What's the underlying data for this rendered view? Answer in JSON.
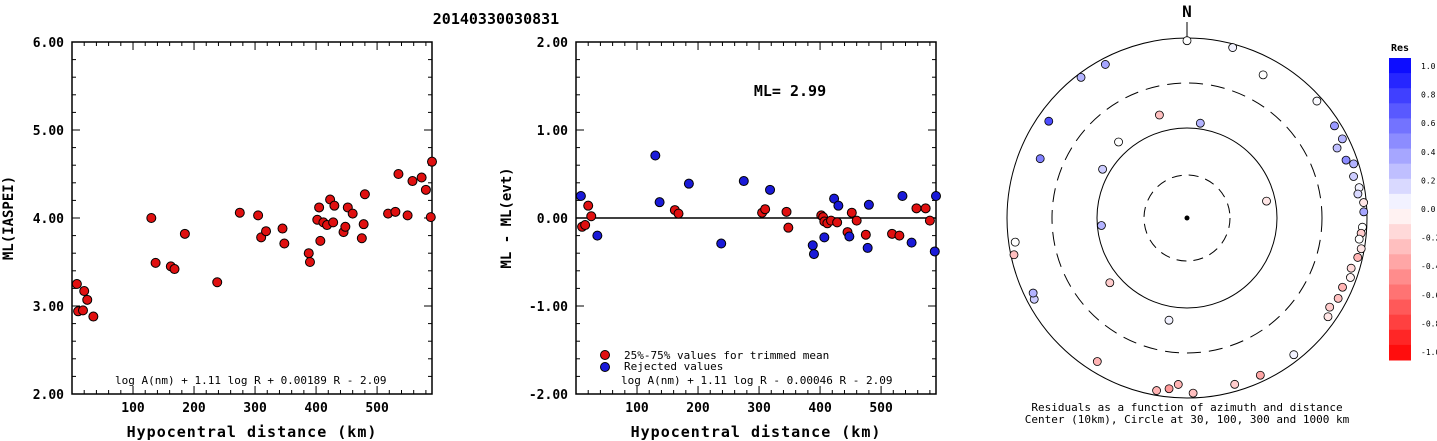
{
  "title": "20140330030831",
  "chart_data": [
    {
      "type": "scatter",
      "xlabel": "Hypocentral distance (km)",
      "ylabel": "ML(IASPEI)",
      "xlim": [
        0,
        590
      ],
      "ylim": [
        2.0,
        6.0
      ],
      "xticks": [
        "100",
        "200",
        "300",
        "400",
        "500"
      ],
      "yticks": [
        "2.00",
        "3.00",
        "4.00",
        "5.00",
        "6.00"
      ],
      "formula": "log A(nm) + 1.11 log R + 0.00189 R - 2.09",
      "grid": false,
      "series": [
        {
          "color": "#e01010",
          "points": [
            [
              8,
              3.25
            ],
            [
              10,
              2.94
            ],
            [
              18,
              2.95
            ],
            [
              20,
              3.17
            ],
            [
              25,
              3.07
            ],
            [
              35,
              2.88
            ],
            [
              130,
              4.0
            ],
            [
              137,
              3.49
            ],
            [
              162,
              3.45
            ],
            [
              168,
              3.42
            ],
            [
              185,
              3.82
            ],
            [
              238,
              3.27
            ],
            [
              275,
              4.06
            ],
            [
              305,
              4.03
            ],
            [
              310,
              3.78
            ],
            [
              318,
              3.85
            ],
            [
              345,
              3.88
            ],
            [
              348,
              3.71
            ],
            [
              388,
              3.6
            ],
            [
              390,
              3.5
            ],
            [
              402,
              3.98
            ],
            [
              405,
              4.12
            ],
            [
              407,
              3.74
            ],
            [
              412,
              3.95
            ],
            [
              418,
              3.92
            ],
            [
              423,
              4.21
            ],
            [
              428,
              3.95
            ],
            [
              430,
              4.14
            ],
            [
              445,
              3.84
            ],
            [
              448,
              3.9
            ],
            [
              452,
              4.12
            ],
            [
              460,
              4.05
            ],
            [
              475,
              3.77
            ],
            [
              478,
              3.93
            ],
            [
              480,
              4.27
            ],
            [
              518,
              4.05
            ],
            [
              530,
              4.07
            ],
            [
              535,
              4.5
            ],
            [
              550,
              4.03
            ],
            [
              558,
              4.42
            ],
            [
              573,
              4.46
            ],
            [
              580,
              4.32
            ],
            [
              588,
              4.01
            ],
            [
              593,
              4.64
            ]
          ]
        }
      ]
    },
    {
      "type": "scatter",
      "xlabel": "Hypocentral distance (km)",
      "ylabel": "ML - ML(evt)",
      "xlim": [
        0,
        590
      ],
      "ylim": [
        -2.0,
        2.0
      ],
      "xticks": [
        "100",
        "200",
        "300",
        "400",
        "500"
      ],
      "yticks": [
        "-2.00",
        "-1.00",
        "0.00",
        "1.00",
        "2.00"
      ],
      "annotation": "ML= 2.99",
      "formula": "log A(nm) + 1.11 log R - 0.00046 R - 2.09",
      "hline": 0,
      "grid": false,
      "legend_position": "bottom-left",
      "series": [
        {
          "name": "25%-75% values for trimmed mean",
          "color": "#e01010",
          "points": [
            [
              10,
              -0.1
            ],
            [
              15,
              -0.08
            ],
            [
              20,
              0.14
            ],
            [
              25,
              0.02
            ],
            [
              162,
              0.09
            ],
            [
              168,
              0.05
            ],
            [
              305,
              0.06
            ],
            [
              310,
              0.1
            ],
            [
              345,
              0.07
            ],
            [
              348,
              -0.11
            ],
            [
              402,
              0.03
            ],
            [
              405,
              0.01
            ],
            [
              407,
              -0.04
            ],
            [
              412,
              -0.06
            ],
            [
              418,
              -0.03
            ],
            [
              428,
              -0.05
            ],
            [
              445,
              -0.16
            ],
            [
              452,
              0.06
            ],
            [
              460,
              -0.03
            ],
            [
              475,
              -0.19
            ],
            [
              518,
              -0.18
            ],
            [
              530,
              -0.2
            ],
            [
              558,
              0.11
            ],
            [
              573,
              0.11
            ],
            [
              580,
              -0.03
            ]
          ]
        },
        {
          "name": "Rejected values",
          "color": "#1a1ad8",
          "points": [
            [
              8,
              0.25
            ],
            [
              35,
              -0.2
            ],
            [
              130,
              0.71
            ],
            [
              137,
              0.18
            ],
            [
              185,
              0.39
            ],
            [
              238,
              -0.29
            ],
            [
              275,
              0.42
            ],
            [
              318,
              0.32
            ],
            [
              388,
              -0.31
            ],
            [
              390,
              -0.41
            ],
            [
              407,
              -0.22
            ],
            [
              423,
              0.22
            ],
            [
              430,
              0.14
            ],
            [
              448,
              -0.21
            ],
            [
              478,
              -0.34
            ],
            [
              480,
              0.15
            ],
            [
              535,
              0.25
            ],
            [
              550,
              -0.28
            ],
            [
              588,
              -0.38
            ],
            [
              593,
              0.25
            ]
          ]
        }
      ]
    }
  ],
  "polar_plot": {
    "north_label": "N",
    "caption_line1": "Residuals as a function of azimuth and distance",
    "caption_line2": "Center (10km), Circle at 30, 100, 300 and 1000 km",
    "colorbar_title": "Res",
    "colorbar_labels": [
      "1.0",
      "0.8",
      "0.6",
      "0.4",
      "0.2",
      "0.0",
      "-0.2",
      "-0.4",
      "-0.6",
      "-0.8",
      "-1.0"
    ],
    "stations": [
      {
        "az": 0,
        "dist": 930,
        "res": 0.0
      },
      {
        "az": 15,
        "dist": 910,
        "res": 0.05
      },
      {
        "az": 48,
        "dist": 870,
        "res": 0.02
      },
      {
        "az": 28,
        "dist": 620,
        "res": 0.0
      },
      {
        "az": 332,
        "dist": 850,
        "res": 0.35
      },
      {
        "az": 323,
        "dist": 900,
        "res": 0.3
      },
      {
        "az": 305,
        "dist": 740,
        "res": 0.7
      },
      {
        "az": 292,
        "dist": 560,
        "res": 0.5
      },
      {
        "az": 58,
        "dist": 850,
        "res": 0.4
      },
      {
        "az": 63,
        "dist": 860,
        "res": 0.3
      },
      {
        "az": 65,
        "dist": 680,
        "res": 0.25
      },
      {
        "az": 70,
        "dist": 750,
        "res": 0.45
      },
      {
        "az": 72,
        "dist": 880,
        "res": 0.3
      },
      {
        "az": 76,
        "dist": 800,
        "res": 0.2
      },
      {
        "az": 80,
        "dist": 870,
        "res": 0.05
      },
      {
        "az": 82,
        "dist": 820,
        "res": 0.15
      },
      {
        "az": 85,
        "dist": 930,
        "res": -0.1
      },
      {
        "az": 88,
        "dist": 920,
        "res": 0.35
      },
      {
        "az": 93,
        "dist": 890,
        "res": 0.0
      },
      {
        "az": 95,
        "dist": 870,
        "res": -0.2
      },
      {
        "az": 97,
        "dist": 840,
        "res": 0.0
      },
      {
        "az": 100,
        "dist": 920,
        "res": -0.1
      },
      {
        "az": 103,
        "dist": 880,
        "res": -0.3
      },
      {
        "az": 107,
        "dist": 800,
        "res": -0.15
      },
      {
        "az": 110,
        "dist": 850,
        "res": -0.05
      },
      {
        "az": 114,
        "dist": 770,
        "res": -0.3
      },
      {
        "az": 118,
        "dist": 790,
        "res": -0.25
      },
      {
        "az": 122,
        "dist": 730,
        "res": -0.2
      },
      {
        "az": 125,
        "dist": 810,
        "res": -0.1
      },
      {
        "az": 142,
        "dist": 840,
        "res": 0.05
      },
      {
        "az": 155,
        "dist": 840,
        "res": -0.35
      },
      {
        "az": 164,
        "dist": 830,
        "res": -0.2
      },
      {
        "az": 178,
        "dist": 880,
        "res": -0.25
      },
      {
        "az": 183,
        "dist": 700,
        "res": -0.3
      },
      {
        "az": 186,
        "dist": 800,
        "res": -0.4
      },
      {
        "az": 190,
        "dist": 880,
        "res": -0.3
      },
      {
        "az": 212,
        "dist": 750,
        "res": -0.3
      },
      {
        "az": 242,
        "dist": 830,
        "res": 0.2
      },
      {
        "az": 244,
        "dist": 790,
        "res": 0.3
      },
      {
        "az": 258,
        "dist": 920,
        "res": -0.25
      },
      {
        "az": 262,
        "dist": 840,
        "res": 0.0
      },
      {
        "az": 190,
        "dist": 140,
        "res": 0.05
      },
      {
        "az": 230,
        "dist": 130,
        "res": -0.2
      },
      {
        "az": 300,
        "dist": 120,
        "res": 0.2
      },
      {
        "az": 318,
        "dist": 135,
        "res": 0.0
      },
      {
        "az": 345,
        "dist": 150,
        "res": -0.25
      },
      {
        "az": 8,
        "dist": 115,
        "res": 0.3
      },
      {
        "az": 78,
        "dist": 80,
        "res": -0.1
      },
      {
        "az": 265,
        "dist": 90,
        "res": 0.3
      }
    ]
  }
}
